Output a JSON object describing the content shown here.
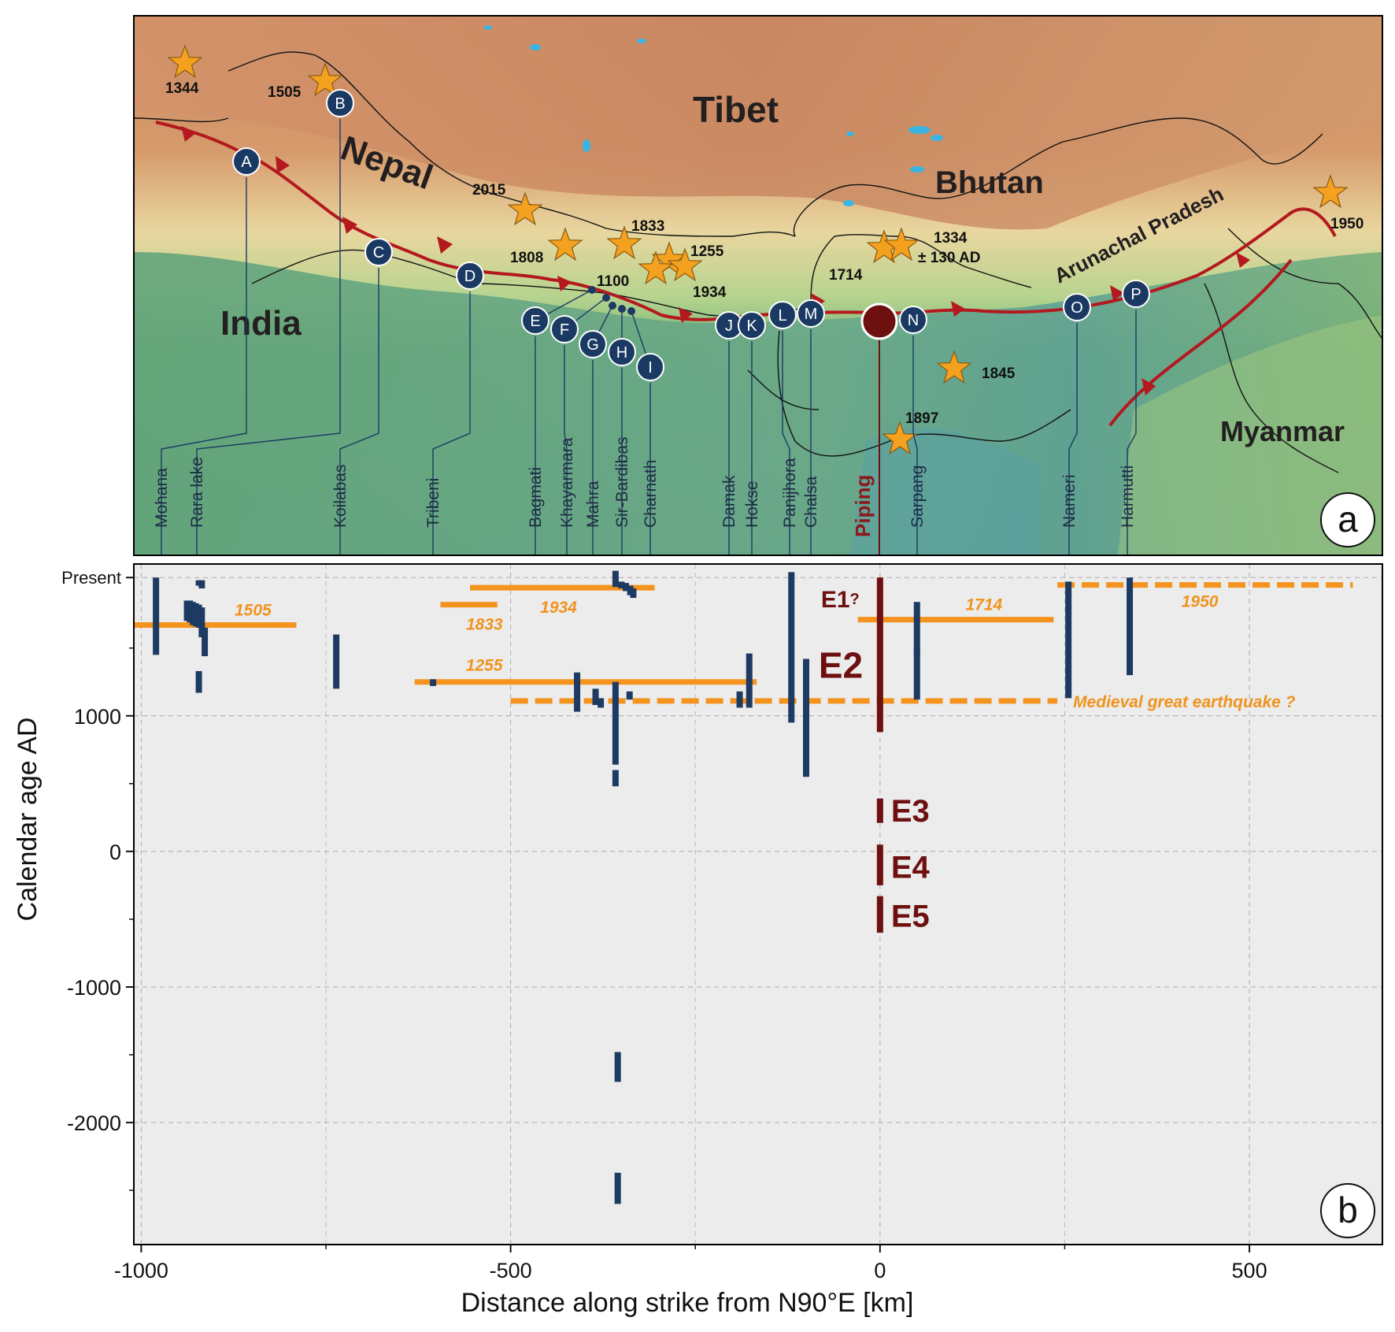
{
  "panel_a": {
    "letter": "a",
    "regions": [
      {
        "name": "Tibet",
        "size": 46
      },
      {
        "name": "Nepal",
        "size": 44
      },
      {
        "name": "Bhutan",
        "size": 40
      },
      {
        "name": "India",
        "size": 44
      },
      {
        "name": "Myanmar",
        "size": 36
      },
      {
        "name": "Arunachal Pradesh",
        "size": 26
      }
    ],
    "earthquakes": [
      {
        "year": "1344"
      },
      {
        "year": "1505"
      },
      {
        "year": "2015"
      },
      {
        "year": "1808"
      },
      {
        "year": "1833"
      },
      {
        "year": "1255"
      },
      {
        "year": "1100"
      },
      {
        "year": "1934"
      },
      {
        "year": "1714"
      },
      {
        "year": "1334",
        "note": "± 130 AD"
      },
      {
        "year": "1845"
      },
      {
        "year": "1897"
      },
      {
        "year": "1950"
      }
    ],
    "sites": [
      {
        "letter": "A",
        "name": "Mohana"
      },
      {
        "letter": "B",
        "name": "Rara lake"
      },
      {
        "letter": "C",
        "name": "Koilabas"
      },
      {
        "letter": "D",
        "name": "Tribeni"
      },
      {
        "letter": "E",
        "name": "Bagmati"
      },
      {
        "letter": "F",
        "name": "Khayarmara"
      },
      {
        "letter": "G",
        "name": "Mahra"
      },
      {
        "letter": "H",
        "name": "Sir-Bardibas"
      },
      {
        "letter": "I",
        "name": "Charnath"
      },
      {
        "letter": "J",
        "name": "Damak"
      },
      {
        "letter": "K",
        "name": "Hokse"
      },
      {
        "letter": "L",
        "name": "Panijhora"
      },
      {
        "letter": "M",
        "name": "Chalsa"
      },
      {
        "letter": "N",
        "name": "Sarpang"
      },
      {
        "letter": "O",
        "name": "Nameri"
      },
      {
        "letter": "P",
        "name": "Harmutti"
      }
    ],
    "piping_label": "Piping",
    "colors": {
      "thrust": "#b3191e",
      "star": "#f4a11f",
      "site": "#1b3a63",
      "piping": "#6e1010"
    }
  },
  "chart_data": {
    "type": "range-bars",
    "letter": "b",
    "xlabel": "Distance along strike from N90°E [km]",
    "ylabel": "Calendar age AD",
    "xlim": [
      -1010,
      680
    ],
    "ylim": [
      -2900,
      2120
    ],
    "xticks": [
      -1000,
      -500,
      0,
      500
    ],
    "yticks": [
      -2000,
      -1000,
      0,
      1000
    ],
    "ytick_present": {
      "value": 2020,
      "label": "Present"
    },
    "grid": true,
    "site_bars": [
      {
        "x": -980,
        "y1": 1450,
        "y2": 2020
      },
      {
        "x": -938,
        "y1": 1700,
        "y2": 1850
      },
      {
        "x": -934,
        "y1": 1690,
        "y2": 1850
      },
      {
        "x": -930,
        "y1": 1670,
        "y2": 1840
      },
      {
        "x": -926,
        "y1": 1660,
        "y2": 1830
      },
      {
        "x": -922,
        "y1": 1170,
        "y2": 1330
      },
      {
        "x": -922,
        "y1": 1960,
        "y2": 2000
      },
      {
        "x": -922,
        "y1": 1650,
        "y2": 1820
      },
      {
        "x": -918,
        "y1": 1580,
        "y2": 1800
      },
      {
        "x": -918,
        "y1": 1940,
        "y2": 2000
      },
      {
        "x": -914,
        "y1": 1440,
        "y2": 1650
      },
      {
        "x": -736,
        "y1": 1200,
        "y2": 1600
      },
      {
        "x": -605,
        "y1": 1220,
        "y2": 1270
      },
      {
        "x": -410,
        "y1": 1030,
        "y2": 1320
      },
      {
        "x": -385,
        "y1": 1080,
        "y2": 1200
      },
      {
        "x": -378,
        "y1": 1060,
        "y2": 1130
      },
      {
        "x": -358,
        "y1": 480,
        "y2": 600
      },
      {
        "x": -358,
        "y1": 640,
        "y2": 1250
      },
      {
        "x": -358,
        "y1": 1950,
        "y2": 2070
      },
      {
        "x": -355,
        "y1": -1700,
        "y2": -1480
      },
      {
        "x": -355,
        "y1": -2600,
        "y2": -2370
      },
      {
        "x": -350,
        "y1": 1940,
        "y2": 1990
      },
      {
        "x": -344,
        "y1": 1920,
        "y2": 1980
      },
      {
        "x": -338,
        "y1": 1890,
        "y2": 1960
      },
      {
        "x": -334,
        "y1": 1870,
        "y2": 1940
      },
      {
        "x": -339,
        "y1": 1120,
        "y2": 1180
      },
      {
        "x": -190,
        "y1": 1060,
        "y2": 1180
      },
      {
        "x": -177,
        "y1": 1060,
        "y2": 1460
      },
      {
        "x": -120,
        "y1": 950,
        "y2": 2060
      },
      {
        "x": -100,
        "y1": 550,
        "y2": 1420
      },
      {
        "x": 50,
        "y1": 1450,
        "y2": 1840
      },
      {
        "x": 50,
        "y1": 1120,
        "y2": 1500
      },
      {
        "x": 255,
        "y1": 1130,
        "y2": 1990
      },
      {
        "x": 338,
        "y1": 1300,
        "y2": 2020
      }
    ],
    "earthquake_ranges": [
      {
        "label": "1505",
        "x1": -1010,
        "x2": -790,
        "y": 1670,
        "dashed": false
      },
      {
        "label": "1833",
        "x1": -595,
        "x2": -518,
        "y": 1820,
        "dashed": false
      },
      {
        "label": "1934",
        "x1": -555,
        "x2": -305,
        "y": 1945,
        "dashed": false
      },
      {
        "label": "1255",
        "x1": -630,
        "x2": -167,
        "y": 1250,
        "dashed": false
      },
      {
        "label": "1714",
        "x1": -30,
        "x2": 235,
        "y": 1710,
        "dashed": false
      },
      {
        "label": "1950",
        "x1": 240,
        "x2": 640,
        "y": 1965,
        "dashed": true
      },
      {
        "label": "Medieval great earthquake ?",
        "x1": -500,
        "x2": 240,
        "y": 1110,
        "dashed": true
      }
    ],
    "piping_events": [
      {
        "label": "E1",
        "suffix": "?",
        "y1": 1870,
        "y2": 2020
      },
      {
        "label": "E2",
        "y1": 880,
        "y2": 1870
      },
      {
        "label": "E3",
        "y1": 210,
        "y2": 390
      },
      {
        "label": "E4",
        "y1": -250,
        "y2": 50
      },
      {
        "label": "E5",
        "y1": -600,
        "y2": -330
      }
    ]
  }
}
